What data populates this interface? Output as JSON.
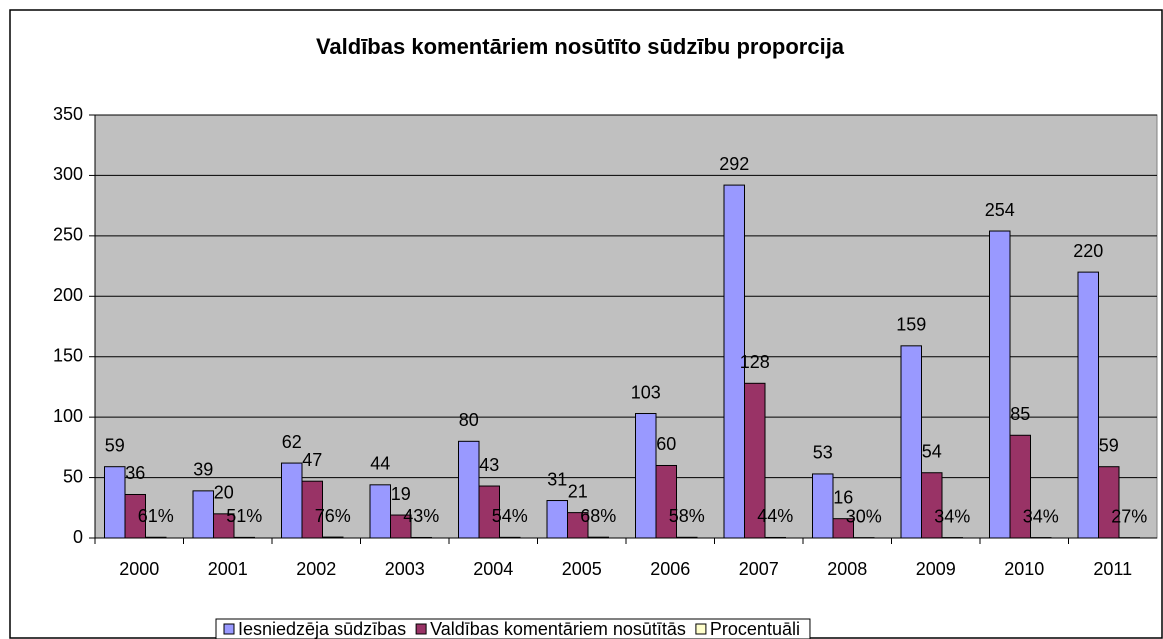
{
  "chart_data": {
    "type": "bar",
    "title": "Valdības komentāriem nosūtīto sūdzību proporcija",
    "categories": [
      "2000",
      "2001",
      "2002",
      "2003",
      "2004",
      "2005",
      "2006",
      "2007",
      "2008",
      "2009",
      "2010",
      "2011"
    ],
    "series": [
      {
        "name": "Iesniedzēja sūdzības",
        "color": "#9999ff",
        "values": [
          59,
          39,
          62,
          44,
          80,
          31,
          103,
          292,
          53,
          159,
          254,
          220
        ]
      },
      {
        "name": "Valdības komentāriem nosūtītās",
        "color": "#993366",
        "values": [
          36,
          20,
          47,
          19,
          43,
          21,
          60,
          128,
          16,
          54,
          85,
          59
        ]
      },
      {
        "name": "Procentuāli",
        "color": "#ffffcc",
        "values": [
          0.61,
          0.51,
          0.76,
          0.43,
          0.54,
          0.68,
          0.58,
          0.44,
          0.3,
          0.34,
          0.34,
          0.27
        ],
        "value_labels": [
          "61%",
          "51%",
          "76%",
          "43%",
          "54%",
          "68%",
          "58%",
          "44%",
          "30%",
          "34%",
          "34%",
          "27%"
        ]
      }
    ],
    "ylim": [
      0,
      350
    ],
    "yticks": [
      0,
      50,
      100,
      150,
      200,
      250,
      300,
      350
    ],
    "grid": true,
    "legend": "bottom"
  }
}
